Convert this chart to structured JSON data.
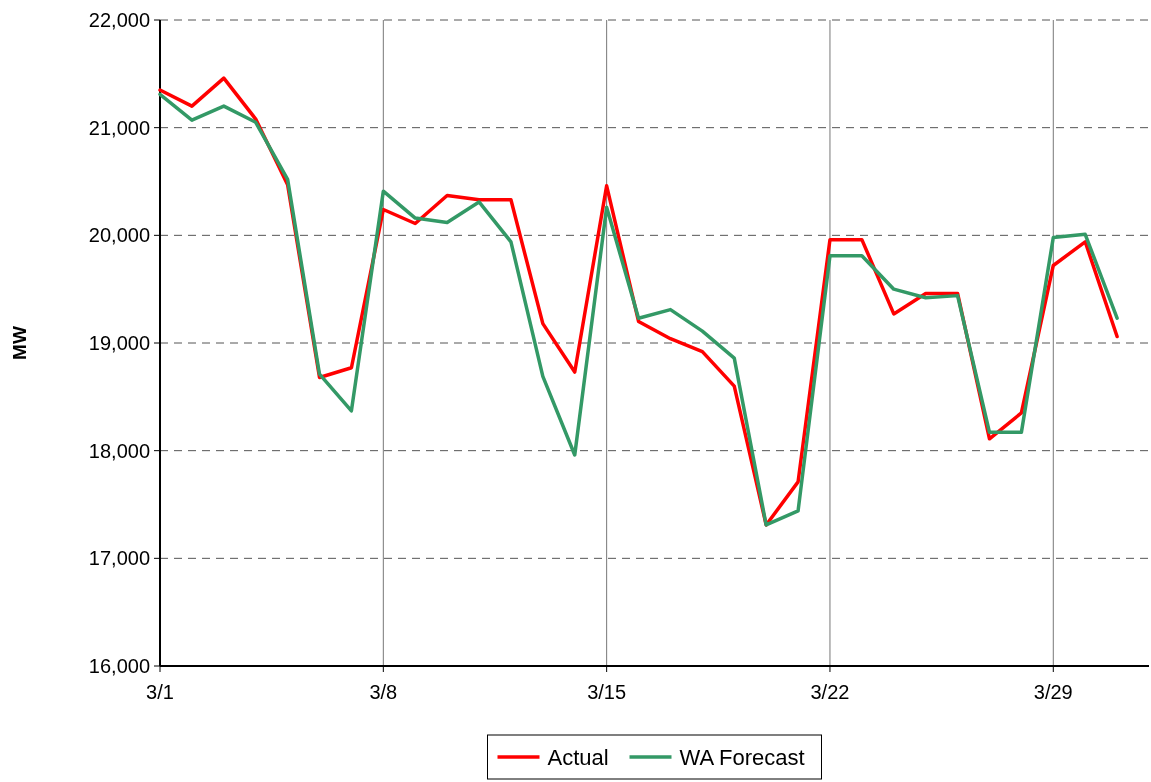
{
  "chart_data": {
    "type": "line",
    "ylabel": "MW",
    "x": [
      "--03-01",
      "--03-02",
      "--03-03",
      "--03-04",
      "--03-05",
      "--03-06",
      "--03-07",
      "--03-08",
      "--03-09",
      "--03-10",
      "--03-11",
      "--03-12",
      "--03-13",
      "--03-14",
      "--03-15",
      "--03-16",
      "--03-17",
      "--03-18",
      "--03-19",
      "--03-20",
      "--03-21",
      "--03-22",
      "--03-23",
      "--03-24",
      "--03-25",
      "--03-26",
      "--03-27",
      "--03-28",
      "--03-29",
      "--03-30",
      "--03-31"
    ],
    "xlim": [
      "--03-01",
      "--04-01"
    ],
    "xticks": [
      {
        "value": "--03-01",
        "label": "3/1"
      },
      {
        "value": "--03-08",
        "label": "3/8"
      },
      {
        "value": "--03-15",
        "label": "3/15"
      },
      {
        "value": "--03-22",
        "label": "3/22"
      },
      {
        "value": "--03-29",
        "label": "3/29"
      }
    ],
    "ylim": [
      16000,
      22000
    ],
    "yticks": [
      {
        "value": 16000,
        "label": "16,000"
      },
      {
        "value": 17000,
        "label": "17,000"
      },
      {
        "value": 18000,
        "label": "18,000"
      },
      {
        "value": 19000,
        "label": "19,000"
      },
      {
        "value": 20000,
        "label": "20,000"
      },
      {
        "value": 21000,
        "label": "21,000"
      },
      {
        "value": 22000,
        "label": "22,000"
      }
    ],
    "grid": true,
    "legend": "bottom",
    "line_style": "solid",
    "marker": "none",
    "series": [
      {
        "name": "Actual",
        "color": "#ff0000",
        "values": [
          21350,
          21200,
          21460,
          21080,
          20470,
          18680,
          18770,
          20240,
          20110,
          20370,
          20330,
          20330,
          19180,
          18730,
          20460,
          19200,
          19040,
          18920,
          18600,
          17310,
          17710,
          19960,
          19960,
          19270,
          19460,
          19460,
          18110,
          18350,
          19720,
          19940,
          19060
        ]
      },
      {
        "name": "WA Forecast",
        "color": "#339966",
        "values": [
          21310,
          21070,
          21200,
          21050,
          20520,
          18710,
          18370,
          20410,
          20160,
          20120,
          20310,
          19940,
          18690,
          17960,
          20260,
          19230,
          19310,
          19110,
          18860,
          17310,
          17440,
          19810,
          19810,
          19500,
          19420,
          19440,
          18170,
          18170,
          19980,
          20010,
          19230
        ]
      }
    ]
  }
}
